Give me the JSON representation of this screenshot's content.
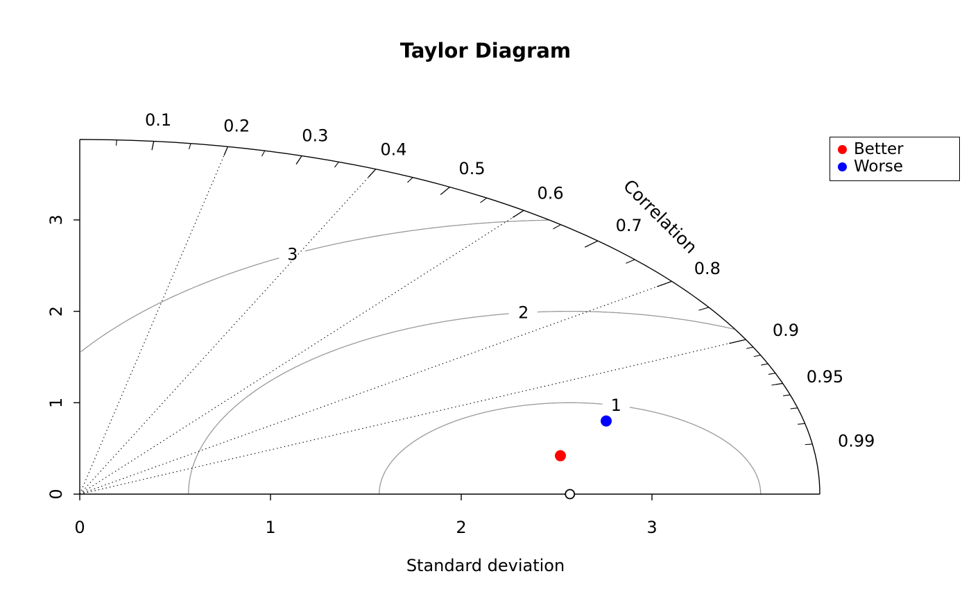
{
  "chart_data": {
    "type": "scatter",
    "variant": "taylor-diagram",
    "title": "Taylor Diagram",
    "xlabel": "Standard deviation",
    "arc_axis_label": "Correlation",
    "sd_max": 3.88,
    "sd_ticks": [
      0,
      1,
      2,
      3
    ],
    "correlation_tick_labels": [
      0.1,
      0.2,
      0.3,
      0.4,
      0.5,
      0.6,
      0.7,
      0.8,
      0.9,
      0.95,
      0.99
    ],
    "correlation_major_ticks": [
      0.1,
      0.2,
      0.3,
      0.4,
      0.5,
      0.6,
      0.7,
      0.8,
      0.9
    ],
    "correlation_medium_ticks": [
      0.05,
      0.15,
      0.25,
      0.35,
      0.45,
      0.55,
      0.65,
      0.75,
      0.85,
      0.95
    ],
    "correlation_minor_ticks": [
      0.91,
      0.92,
      0.93,
      0.94,
      0.95,
      0.96,
      0.97,
      0.98,
      0.99
    ],
    "correlation_ray_lines": [
      0.2,
      0.4,
      0.6,
      0.8,
      0.9
    ],
    "rms_arcs": {
      "radii": [
        1,
        2,
        3
      ],
      "labels": [
        "1",
        "2",
        "3"
      ],
      "center_sd": 2.57,
      "label_angles_deg": [
        76,
        97,
        119
      ],
      "color": "#999999"
    },
    "reference_point": {
      "sd": 2.57,
      "correlation": 1.0,
      "marker": "open-circle"
    },
    "points": [
      {
        "label": "Better",
        "color": "#ff0000",
        "sd": 2.55,
        "correlation": 0.986,
        "x": 2.52,
        "y": 0.42
      },
      {
        "label": "Worse",
        "color": "#0000ff",
        "sd": 2.87,
        "correlation": 0.96,
        "x": 2.76,
        "y": 0.8
      }
    ],
    "legend": {
      "position": "top-right",
      "entries": [
        {
          "label": "Better",
          "color": "#ff0000"
        },
        {
          "label": "Worse",
          "color": "#0000ff"
        }
      ]
    }
  }
}
